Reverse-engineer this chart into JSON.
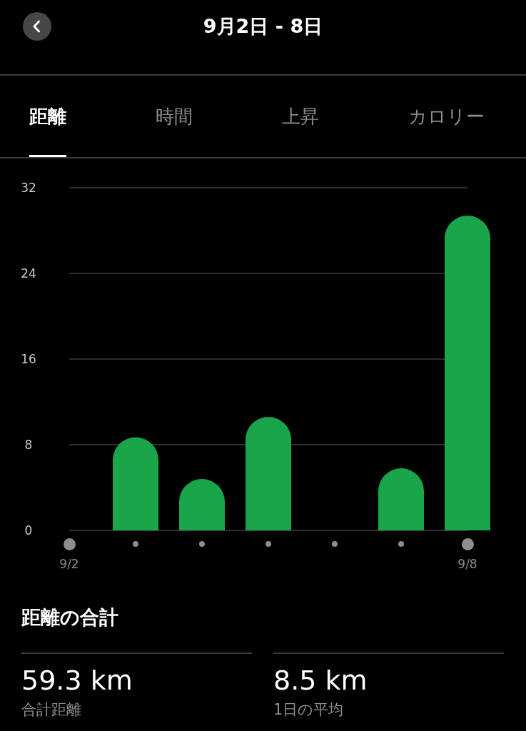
{
  "chart_data": {
    "type": "bar",
    "title": "9月2日 - 8日",
    "categories": [
      "9/2",
      null,
      null,
      null,
      null,
      null,
      "9/8"
    ],
    "values": [
      0,
      8.7,
      4.8,
      10.6,
      0,
      5.8,
      29.4
    ],
    "color": "#19a64a",
    "ylim": [
      0,
      32
    ],
    "yticks": [
      0,
      8,
      16,
      24,
      32
    ],
    "grid": "y",
    "annotations": [
      "距離",
      "時間",
      "上昇",
      "カロリー",
      "距離の合計",
      "59.3 km",
      "合計距離",
      "8.5 km",
      "1日の平均"
    ]
  }
}
